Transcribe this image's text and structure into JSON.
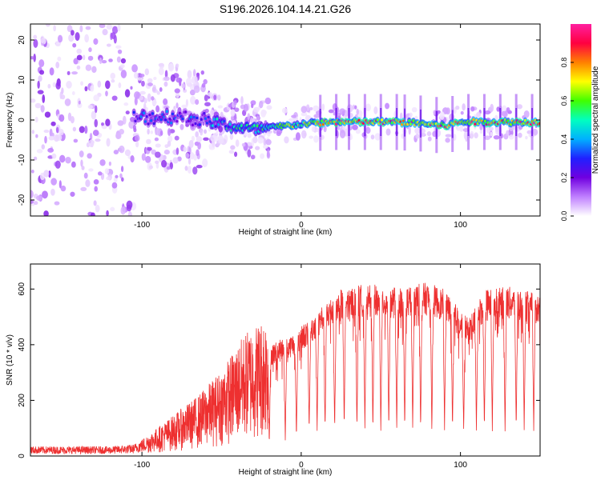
{
  "figure": {
    "title": "S196.2026.104.14.21.G26"
  },
  "chart_data": [
    {
      "type": "heatmap",
      "title": "S196.2026.104.14.21.G26",
      "xlabel": "Height of straight line (km)",
      "ylabel": "Frequency (Hz)",
      "xlim": [
        -170,
        150
      ],
      "ylim": [
        -24,
        24
      ],
      "xticks": [
        -100,
        0,
        100
      ],
      "yticks": [
        -20,
        -10,
        0,
        10,
        20
      ],
      "colorbar": {
        "label": "Normalized spectral amplitude",
        "range": [
          0,
          1
        ],
        "ticks": [
          0.0,
          0.2,
          0.4,
          0.6,
          0.8
        ],
        "tick_labels": [
          "0.0",
          "0.2",
          "0.4",
          "0.6",
          "0.8"
        ],
        "colors": [
          "#ffffff",
          "#c080ff",
          "#7000e0",
          "#2020ff",
          "#00b0ff",
          "#00ffc0",
          "#40ff00",
          "#ffff00",
          "#ff8000",
          "#ff0040",
          "#ff20a0"
        ]
      },
      "ridge": {
        "description": "dominant frequency track",
        "points": [
          [
            -100,
            0.5
          ],
          [
            -80,
            1.0
          ],
          [
            -60,
            0.0
          ],
          [
            -45,
            -1.5
          ],
          [
            -30,
            -2.5
          ],
          [
            -20,
            -2.0
          ],
          [
            -10,
            -1.5
          ],
          [
            0,
            -1.0
          ],
          [
            20,
            -0.5
          ],
          [
            40,
            -0.5
          ],
          [
            60,
            -0.5
          ],
          [
            80,
            -1.0
          ],
          [
            90,
            -1.5
          ],
          [
            100,
            -0.5
          ],
          [
            120,
            -0.5
          ],
          [
            150,
            -0.5
          ]
        ]
      },
      "pulse_heights_km": [
        12,
        22,
        30,
        40,
        50,
        60,
        65,
        75,
        85,
        95,
        105,
        115,
        125,
        135,
        145
      ]
    },
    {
      "type": "line",
      "xlabel": "Height of straight line (km)",
      "ylabel": "SNR (10 * v/v)",
      "xlim": [
        -170,
        150
      ],
      "ylim": [
        0,
        690
      ],
      "xticks": [
        -100,
        0,
        100
      ],
      "yticks": [
        0,
        200,
        400,
        600
      ],
      "series": [
        {
          "name": "SNR",
          "color": "#ee3030",
          "envelope": [
            [
              -170,
              25
            ],
            [
              -120,
              25
            ],
            [
              -105,
              30
            ],
            [
              -95,
              60
            ],
            [
              -80,
              110
            ],
            [
              -65,
              160
            ],
            [
              -50,
              230
            ],
            [
              -35,
              330
            ],
            [
              -20,
              380
            ],
            [
              -5,
              420
            ],
            [
              5,
              470
            ],
            [
              15,
              530
            ],
            [
              25,
              570
            ],
            [
              40,
              590
            ],
            [
              60,
              580
            ],
            [
              80,
              595
            ],
            [
              90,
              570
            ],
            [
              100,
              500
            ],
            [
              105,
              470
            ],
            [
              115,
              570
            ],
            [
              130,
              580
            ],
            [
              150,
              555
            ]
          ],
          "dips_km": [
            -20,
            -10,
            -3,
            5,
            10,
            15,
            21,
            27,
            35,
            40,
            45,
            50,
            55,
            60,
            65,
            70,
            75,
            82,
            90,
            95,
            102,
            110,
            115,
            120,
            128,
            135,
            140,
            146
          ]
        }
      ]
    }
  ]
}
